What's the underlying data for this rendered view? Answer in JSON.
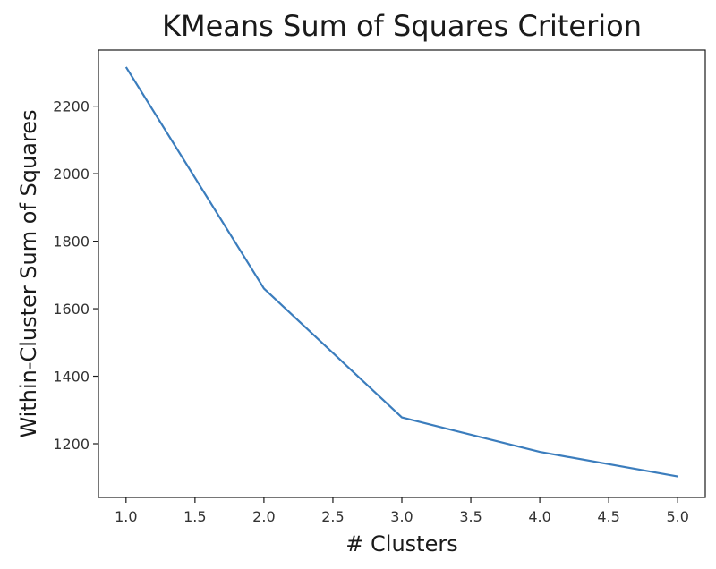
{
  "chart_data": {
    "type": "line",
    "title": "KMeans Sum of Squares Criterion",
    "xlabel": "# Clusters",
    "ylabel": "Within-Cluster Sum of Squares",
    "x": [
      1,
      2,
      3,
      4,
      5
    ],
    "series": [
      {
        "values": [
          2316,
          1660,
          1278,
          1176,
          1103
        ],
        "color": "#3b7dbd"
      }
    ],
    "xlim": [
      0.8,
      5.2
    ],
    "ylim": [
      1041,
      2366
    ],
    "xticks": [
      1.0,
      1.5,
      2.0,
      2.5,
      3.0,
      3.5,
      4.0,
      4.5,
      5.0
    ],
    "xtick_labels": [
      "1.0",
      "1.5",
      "2.0",
      "2.5",
      "3.0",
      "3.5",
      "4.0",
      "4.5",
      "5.0"
    ],
    "yticks": [
      1200,
      1400,
      1600,
      1800,
      2000,
      2200
    ],
    "ytick_labels": [
      "1200",
      "1400",
      "1600",
      "1800",
      "2000",
      "2200"
    ],
    "grid": false,
    "legend": "none"
  }
}
